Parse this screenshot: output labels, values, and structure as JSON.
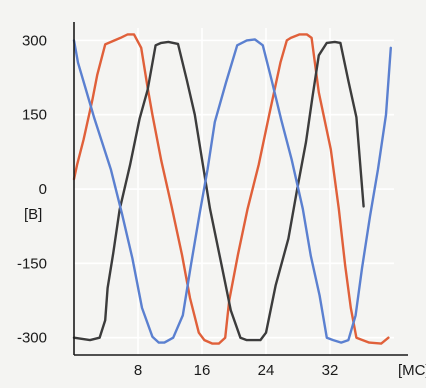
{
  "chart_data": {
    "type": "line",
    "title": "",
    "ylabel": "[B]",
    "xlabel": "[MC]",
    "xlim": [
      0,
      40
    ],
    "ylim": [
      -335,
      325
    ],
    "x_ticks": [
      8,
      16,
      24,
      32
    ],
    "y_ticks": [
      300,
      150,
      0,
      -150,
      -300
    ],
    "grid": true,
    "series": [
      {
        "color": "#e0603a",
        "x": [
          0,
          0.4,
          1.2,
          2.3,
          2.9,
          3.9,
          5.8,
          6.7,
          7.5,
          8.4,
          9.2,
          9.8,
          10.9,
          12.2,
          13.5,
          14.5,
          15.6,
          16.3,
          17.3,
          18.1,
          18.9,
          19.4,
          20.5,
          21.7,
          23.1,
          24.4,
          25.8,
          26.6,
          27.1,
          28.2,
          29.1,
          29.7,
          30.6,
          32.1,
          33.1,
          33.9,
          34.6,
          35.3,
          36.9,
          38.4,
          39.3
        ],
        "y": [
          20,
          50,
          100,
          180,
          230,
          292,
          305,
          312,
          312,
          285,
          205,
          150,
          58,
          -35,
          -133,
          -220,
          -290,
          -305,
          -312,
          -312,
          -300,
          -225,
          -132,
          -40,
          50,
          150,
          255,
          300,
          305,
          312,
          312,
          305,
          195,
          80,
          -40,
          -155,
          -240,
          -300,
          -310,
          -312,
          -300
        ]
      },
      {
        "color": "#3c3c3c",
        "x": [
          0,
          2.0,
          3.2,
          3.9,
          4.2,
          4.9,
          5.7,
          7.0,
          8.2,
          9.2,
          10.2,
          10.9,
          11.8,
          13.0,
          14.1,
          15.1,
          16.0,
          17.0,
          18.4,
          19.6,
          20.8,
          21.6,
          23.3,
          24.0,
          25.2,
          26.8,
          27.9,
          29.0,
          29.8,
          30.6,
          31.6,
          32.6,
          33.3,
          34.3,
          35.3,
          36.2
        ],
        "y": [
          -300,
          -305,
          -300,
          -265,
          -200,
          -130,
          -42,
          48,
          142,
          200,
          290,
          295,
          297,
          293,
          220,
          150,
          60,
          -40,
          -150,
          -245,
          -300,
          -305,
          -305,
          -290,
          -195,
          -100,
          0,
          95,
          185,
          270,
          295,
          297,
          295,
          218,
          145,
          -35
        ]
      },
      {
        "color": "#5b80d0",
        "x": [
          0,
          0.5,
          1.5,
          2.5,
          3.5,
          4.6,
          6.0,
          7.3,
          8.5,
          9.8,
          10.6,
          11.3,
          12.4,
          13.6,
          14.6,
          15.7,
          16.7,
          17.6,
          19.0,
          20.4,
          21.6,
          22.6,
          23.6,
          24.7,
          25.9,
          27.2,
          28.6,
          29.6,
          30.7,
          31.6,
          32.4,
          33.4,
          34.3,
          35.2,
          36.0,
          37.0,
          38.0,
          39.0,
          39.6
        ],
        "y": [
          300,
          255,
          200,
          145,
          95,
          40,
          -50,
          -140,
          -240,
          -298,
          -310,
          -310,
          -300,
          -255,
          -155,
          -50,
          40,
          135,
          215,
          290,
          300,
          302,
          290,
          220,
          140,
          60,
          -40,
          -135,
          -215,
          -300,
          -305,
          -310,
          -305,
          -255,
          -160,
          -55,
          40,
          150,
          285
        ]
      }
    ]
  }
}
